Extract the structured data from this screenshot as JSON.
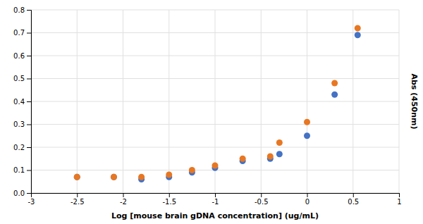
{
  "chart_data": {
    "type": "scatter",
    "x": [
      -2.5,
      -2.1,
      -1.8,
      -1.5,
      -1.25,
      -1.0,
      -0.7,
      -0.4,
      -0.3,
      0.0,
      0.3,
      0.55
    ],
    "series": [
      {
        "color": "#E87722",
        "values": [
          0.07,
          0.07,
          0.07,
          0.08,
          0.1,
          0.12,
          0.15,
          0.16,
          0.22,
          0.31,
          0.48,
          0.72
        ]
      },
      {
        "color": "#4472C4",
        "values": [
          0.07,
          0.07,
          0.06,
          0.07,
          0.09,
          0.11,
          0.14,
          0.15,
          0.17,
          0.25,
          0.43,
          0.69
        ]
      }
    ],
    "marker": "circle",
    "xlabel": "Log [mouse brain gDNA concentration] (ug/mL)",
    "ylabel": "Abs (450nm)",
    "xlim": [
      -3,
      1
    ],
    "ylim": [
      0,
      0.8
    ],
    "xticks": [
      -3,
      -2.5,
      -2,
      -1.5,
      -1,
      -0.5,
      0,
      0.5,
      1
    ],
    "yticks": [
      {
        "value": 0,
        "label": "0.0"
      },
      0.1,
      0.2,
      0.3,
      0.4,
      0.5,
      0.6,
      0.7,
      0.8
    ],
    "grid": true
  }
}
